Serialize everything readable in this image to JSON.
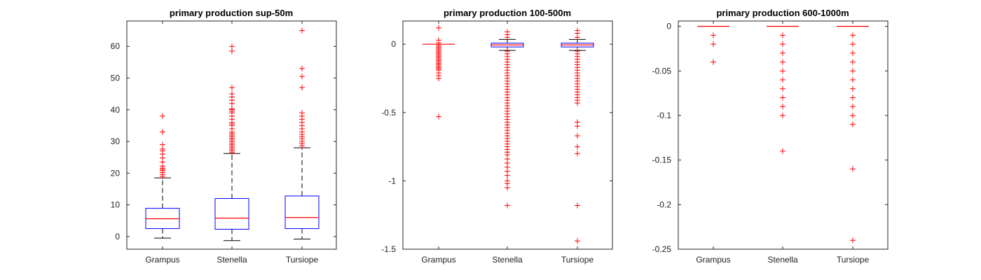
{
  "chart_data": [
    {
      "type": "boxplot",
      "title": "primary production sup-50m",
      "categories": [
        "Grampus",
        "Stenella",
        "Tursiope"
      ],
      "ylim": [
        -4,
        68
      ],
      "yticks": [
        0,
        10,
        20,
        30,
        40,
        50,
        60
      ],
      "ytick_labels": [
        "0",
        "10",
        "20",
        "30",
        "40",
        "50",
        "60"
      ],
      "colors": {
        "box": "#0000ff",
        "median": "#ff0000",
        "whisker": "#000000",
        "outlier": "#ff0000"
      },
      "boxes": [
        {
          "q1": 2.5,
          "median": 5.6,
          "q3": 8.9,
          "whisker_low": -0.5,
          "whisker_high": 18.5,
          "outliers": [
            19,
            19.6,
            20.2,
            20.8,
            21.2,
            21.6,
            22.2,
            23.5,
            24.8,
            26,
            27,
            27.6,
            29,
            33,
            38
          ]
        },
        {
          "q1": 2.3,
          "median": 5.8,
          "q3": 12,
          "whisker_low": -1.3,
          "whisker_high": 26.2,
          "outliers": [
            26.5,
            27,
            27.5,
            28,
            28.5,
            29,
            29.5,
            30,
            30.5,
            31,
            31.5,
            32,
            32.5,
            33,
            34,
            35,
            35.5,
            36,
            37,
            38,
            39,
            39.5,
            40,
            40.3,
            42,
            43,
            44,
            45,
            47,
            58.5,
            60
          ]
        },
        {
          "q1": 2.5,
          "median": 6,
          "q3": 12.8,
          "whisker_low": -0.8,
          "whisker_high": 28,
          "outliers": [
            28.6,
            29.3,
            30,
            30.8,
            31.5,
            32.2,
            33,
            34,
            35,
            36,
            37,
            38,
            39,
            47,
            50.5,
            53,
            65
          ]
        }
      ]
    },
    {
      "type": "boxplot",
      "title": "primary production 100-500m",
      "categories": [
        "Grampus",
        "Stenella",
        "Tursiope"
      ],
      "ylim": [
        -1.5,
        0.17
      ],
      "yticks": [
        0,
        -0.5,
        -1,
        -1.5
      ],
      "ytick_labels": [
        "0",
        "-0.5",
        "-1",
        "-1.5"
      ],
      "colors": {
        "box": "#0000ff",
        "median": "#ff0000",
        "whisker": "#000000",
        "outlier": "#ff0000"
      },
      "boxes": [
        {
          "q1": 0,
          "median": 0,
          "q3": 0,
          "whisker_low": 0,
          "whisker_high": 0,
          "outliers": [
            0.12,
            0.03,
            0.01,
            -0.01,
            -0.02,
            -0.03,
            -0.04,
            -0.05,
            -0.06,
            -0.07,
            -0.08,
            -0.09,
            -0.1,
            -0.11,
            -0.12,
            -0.13,
            -0.14,
            -0.15,
            -0.16,
            -0.17,
            -0.18,
            -0.19,
            -0.21,
            -0.23,
            -0.25,
            -0.53
          ]
        },
        {
          "q1": -0.02,
          "median": -0.005,
          "q3": 0.008,
          "whisker_low": -0.045,
          "whisker_high": 0.035,
          "outliers": [
            0.09,
            0.07,
            0.05,
            -0.05,
            -0.07,
            -0.09,
            -0.11,
            -0.13,
            -0.15,
            -0.17,
            -0.19,
            -0.21,
            -0.23,
            -0.25,
            -0.27,
            -0.29,
            -0.31,
            -0.33,
            -0.35,
            -0.37,
            -0.39,
            -0.41,
            -0.43,
            -0.45,
            -0.47,
            -0.49,
            -0.51,
            -0.53,
            -0.55,
            -0.57,
            -0.59,
            -0.61,
            -0.63,
            -0.65,
            -0.67,
            -0.69,
            -0.71,
            -0.73,
            -0.75,
            -0.77,
            -0.79,
            -0.81,
            -0.84,
            -0.87,
            -0.9,
            -0.93,
            -0.96,
            -1.0,
            -1.02,
            -1.05,
            -1.18
          ]
        },
        {
          "q1": -0.02,
          "median": -0.005,
          "q3": 0.008,
          "whisker_low": -0.045,
          "whisker_high": 0.035,
          "outliers": [
            0.1,
            0.08,
            0.05,
            -0.05,
            -0.07,
            -0.09,
            -0.11,
            -0.13,
            -0.15,
            -0.17,
            -0.19,
            -0.21,
            -0.23,
            -0.25,
            -0.27,
            -0.29,
            -0.31,
            -0.33,
            -0.35,
            -0.37,
            -0.39,
            -0.41,
            -0.43,
            -0.57,
            -0.6,
            -0.67,
            -0.75,
            -0.8,
            -1.18,
            -1.44
          ]
        }
      ]
    },
    {
      "type": "boxplot",
      "title": "primary production 600-1000m",
      "categories": [
        "Grampus",
        "Stenella",
        "Tursiope"
      ],
      "ylim": [
        -0.25,
        0.006
      ],
      "yticks": [
        0,
        -0.05,
        -0.1,
        -0.15,
        -0.2,
        -0.25
      ],
      "ytick_labels": [
        "0",
        "-0.05",
        "-0.1",
        "-0.15",
        "-0.2",
        "-0.25"
      ],
      "colors": {
        "box": "#0000ff",
        "median": "#ff0000",
        "whisker": "#000000",
        "outlier": "#ff0000"
      },
      "boxes": [
        {
          "q1": 0,
          "median": 0,
          "q3": 0,
          "whisker_low": 0,
          "whisker_high": 0,
          "outliers": [
            -0.01,
            -0.02,
            -0.04
          ]
        },
        {
          "q1": 0,
          "median": 0,
          "q3": 0,
          "whisker_low": 0,
          "whisker_high": 0,
          "outliers": [
            -0.01,
            -0.02,
            -0.03,
            -0.04,
            -0.05,
            -0.06,
            -0.07,
            -0.08,
            -0.09,
            -0.1,
            -0.14
          ]
        },
        {
          "q1": 0,
          "median": 0,
          "q3": 0,
          "whisker_low": 0,
          "whisker_high": 0,
          "outliers": [
            -0.01,
            -0.02,
            -0.03,
            -0.04,
            -0.05,
            -0.06,
            -0.07,
            -0.08,
            -0.09,
            -0.1,
            -0.11,
            -0.16,
            -0.24
          ]
        }
      ]
    }
  ]
}
